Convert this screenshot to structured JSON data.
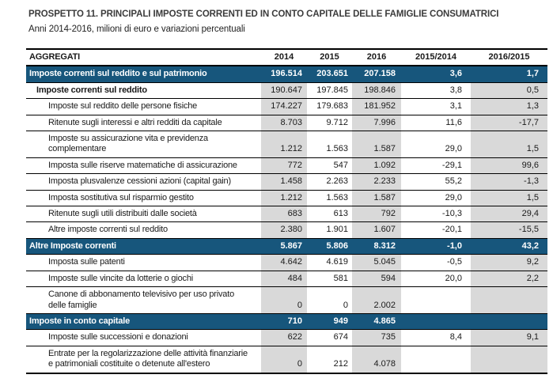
{
  "title": "PROSPETTO 11. PRINCIPALI IMPOSTE CORRENTI ED IN CONTO CAPITALE DELLE FAMIGLIE CONSUMATRICI",
  "subtitle": "Anni 2014-2016, milioni di euro e variazioni percentuali",
  "colors": {
    "section_blue": "#17567C",
    "column_shade_gray": "#D9D9D9",
    "border_black": "#000000"
  },
  "table": {
    "columns": [
      "AGGREGATI",
      "2014",
      "2015",
      "2016",
      "2015/2014",
      "2016/2015"
    ],
    "shaded_columns": [
      "2014",
      "2016",
      "2016/2015"
    ],
    "rows": [
      {
        "style": "section",
        "label": "Imposte correnti sul reddito e sul patrimonio",
        "values": [
          "196.514",
          "203.651",
          "207.158",
          "3,6",
          "1,7"
        ]
      },
      {
        "style": "bold",
        "label": "Imposte correnti sul reddito",
        "values": [
          "190.647",
          "197.845",
          "198.846",
          "3,8",
          "0,5"
        ]
      },
      {
        "style": "item",
        "label": "Imposte sul reddito delle persone fisiche",
        "values": [
          "174.227",
          "179.683",
          "181.952",
          "3,1",
          "1,3"
        ]
      },
      {
        "style": "item",
        "label": "Ritenute sugli interessi e altri redditi da capitale",
        "values": [
          "8.703",
          "9.712",
          "7.996",
          "11,6",
          "-17,7"
        ]
      },
      {
        "style": "item",
        "label": "Imposte su assicurazione vita e previdenza\ncomplementare",
        "values": [
          "1.212",
          "1.563",
          "1.587",
          "29,0",
          "1,5"
        ]
      },
      {
        "style": "item",
        "label": "Imposta sulle riserve matematiche di assicurazione",
        "values": [
          "772",
          "547",
          "1.092",
          "-29,1",
          "99,6"
        ]
      },
      {
        "style": "item",
        "label": "Imposta plusvalenze cessioni azioni (capital gain)",
        "values": [
          "1.458",
          "2.263",
          "2.233",
          "55,2",
          "-1,3"
        ]
      },
      {
        "style": "item",
        "label": "Imposta sostitutiva sul risparmio gestito",
        "values": [
          "1.212",
          "1.563",
          "1.587",
          "29,0",
          "1,5"
        ]
      },
      {
        "style": "item",
        "label": "Ritenute sugli utili distribuiti dalle società",
        "values": [
          "683",
          "613",
          "792",
          "-10,3",
          "29,4"
        ]
      },
      {
        "style": "item",
        "label": "Altre imposte correnti sul reddito",
        "values": [
          "2.380",
          "1.901",
          "1.607",
          "-20,1",
          "-15,5"
        ]
      },
      {
        "style": "section",
        "label": "Altre Imposte correnti",
        "values": [
          "5.867",
          "5.806",
          "8.312",
          "-1,0",
          "43,2"
        ]
      },
      {
        "style": "item",
        "label": "Imposta sulle patenti",
        "values": [
          "4.642",
          "4.619",
          "5.045",
          "-0,5",
          "9,2"
        ]
      },
      {
        "style": "item",
        "label": "Imposte sulle vincite da lotterie o giochi",
        "values": [
          "484",
          "581",
          "594",
          "20,0",
          "2,2"
        ]
      },
      {
        "style": "item",
        "label": "Canone di abbonamento televisivo per uso privato\ndelle famiglie",
        "values": [
          "0",
          "0",
          "2.002",
          "",
          ""
        ]
      },
      {
        "style": "section",
        "label": "Imposte in conto capitale",
        "values": [
          "710",
          "949",
          "4.865",
          "",
          ""
        ]
      },
      {
        "style": "item",
        "label": "Imposte sulle successioni e donazioni",
        "values": [
          "622",
          "674",
          "735",
          "8,4",
          "9,1"
        ]
      },
      {
        "style": "item",
        "label": "Entrate per la regolarizzazione delle attività finanziarie\ne patrimoniali costituite o detenute all'estero",
        "values": [
          "0",
          "212",
          "4.078",
          "",
          ""
        ]
      }
    ]
  }
}
